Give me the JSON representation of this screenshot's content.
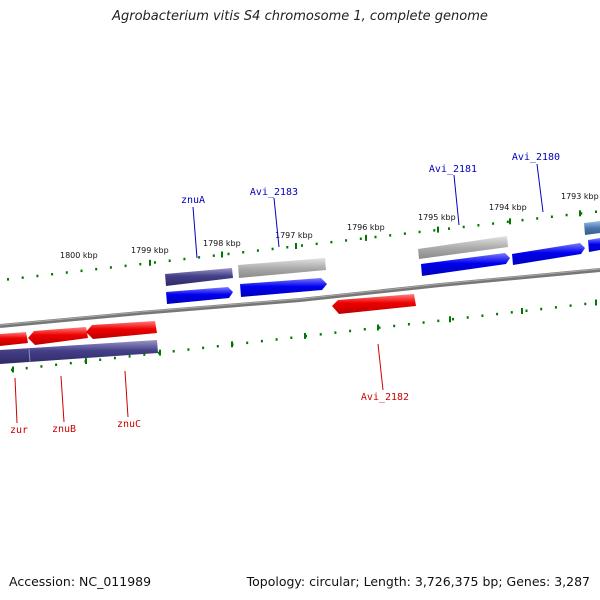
{
  "title": "Agrobacterium vitis S4 chromosome 1, complete genome",
  "footer": {
    "accession": "Accession: NC_011989",
    "summary": "Topology: circular; Length: 3,726,375 bp; Genes: 3,287"
  },
  "colors": {
    "forward_gene": "#0000ee",
    "forward_gene_hi": "#7c7cff",
    "reverse_gene": "#ee0000",
    "reverse_gene_hi": "#ff8080",
    "purple_block": "#443f88",
    "purple_block_hi": "#9a97c8",
    "gray_block": "#9a9a9a",
    "gray_block_hi": "#e2e2e2",
    "steel_block": "#4a78b0",
    "backbone": "#777777",
    "tick": "#007700",
    "forward_label": "#0000bb",
    "reverse_label": "#cc0000"
  },
  "diagram": {
    "kbp_labels": [
      "1800 kbp",
      "1799 kbp",
      "1798 kbp",
      "1797 kbp",
      "1796 kbp",
      "1795 kbp",
      "1794 kbp",
      "1793 kbp"
    ],
    "forward_labels": [
      "znuA",
      "Avi_2183",
      "Avi_2181",
      "Avi_2180"
    ],
    "reverse_labels": [
      "zur",
      "znuB",
      "znuC",
      "Avi_2182"
    ]
  }
}
